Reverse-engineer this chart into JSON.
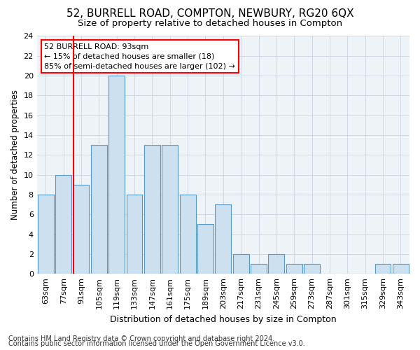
{
  "title": "52, BURRELL ROAD, COMPTON, NEWBURY, RG20 6QX",
  "subtitle": "Size of property relative to detached houses in Compton",
  "xlabel": "Distribution of detached houses by size in Compton",
  "ylabel": "Number of detached properties",
  "bins": [
    "63sqm",
    "77sqm",
    "91sqm",
    "105sqm",
    "119sqm",
    "133sqm",
    "147sqm",
    "161sqm",
    "175sqm",
    "189sqm",
    "203sqm",
    "217sqm",
    "231sqm",
    "245sqm",
    "259sqm",
    "273sqm",
    "287sqm",
    "301sqm",
    "315sqm",
    "329sqm",
    "343sqm"
  ],
  "values": [
    8,
    10,
    9,
    13,
    20,
    8,
    13,
    13,
    8,
    5,
    7,
    2,
    1,
    2,
    1,
    1,
    0,
    0,
    0,
    1,
    1
  ],
  "bar_color": "#cce0f0",
  "bar_edge_color": "#5599cc",
  "red_line_index": 2,
  "annotation_line1": "52 BURRELL ROAD: 93sqm",
  "annotation_line2": "← 15% of detached houses are smaller (18)",
  "annotation_line3": "85% of semi-detached houses are larger (102) →",
  "ylim": [
    0,
    24
  ],
  "yticks": [
    0,
    2,
    4,
    6,
    8,
    10,
    12,
    14,
    16,
    18,
    20,
    22,
    24
  ],
  "footer_line1": "Contains HM Land Registry data © Crown copyright and database right 2024.",
  "footer_line2": "Contains public sector information licensed under the Open Government Licence v3.0.",
  "bg_color": "#ffffff",
  "plot_bg_color": "#eef3f8",
  "grid_color": "#c8d4e0",
  "title_fontsize": 11,
  "subtitle_fontsize": 9.5,
  "xlabel_fontsize": 9,
  "ylabel_fontsize": 8.5,
  "tick_fontsize": 8,
  "annot_fontsize": 8,
  "footer_fontsize": 7
}
